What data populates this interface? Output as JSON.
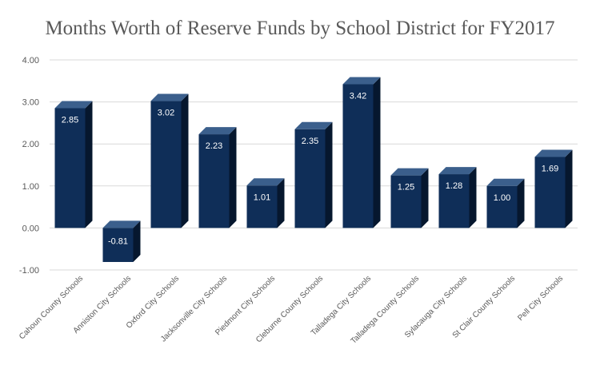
{
  "title": "Months Worth of Reserve Funds by School District for FY2017",
  "colors": {
    "bar_front": "#0f2e58",
    "bar_top": "#3b5f8c",
    "bar_side": "#06172e",
    "grid": "#d9d9d9",
    "text": "#595959"
  },
  "chart_data": {
    "type": "bar",
    "title": "Months Worth of Reserve Funds by School District for FY2017",
    "xlabel": "",
    "ylabel": "",
    "ylim": [
      -1,
      4
    ],
    "yticks": [
      "4.00",
      "3.00",
      "2.00",
      "1.00",
      "0.00",
      "-1.00"
    ],
    "ytick_values": [
      4,
      3,
      2,
      1,
      0,
      -1
    ],
    "grid": true,
    "legend": "none",
    "categories": [
      "Cahoun County Schools",
      "Anniston City Schools",
      "Oxford City Schools",
      "Jacksonville City Schools",
      "Piedmont City Schools",
      "Cleburne County Schools",
      "Talladega City Schools",
      "Talladega County Schools",
      "Sylacauga City Schools",
      "St Clair County Schools",
      "Pell City Schools"
    ],
    "values": [
      2.85,
      -0.81,
      3.02,
      2.23,
      1.01,
      2.35,
      3.42,
      1.25,
      1.28,
      1.0,
      1.69
    ],
    "data_labels": [
      "2.85",
      "-0.81",
      "3.02",
      "2.23",
      "1.01",
      "2.35",
      "3.42",
      "1.25",
      "1.28",
      "1.00",
      "1.69"
    ]
  }
}
